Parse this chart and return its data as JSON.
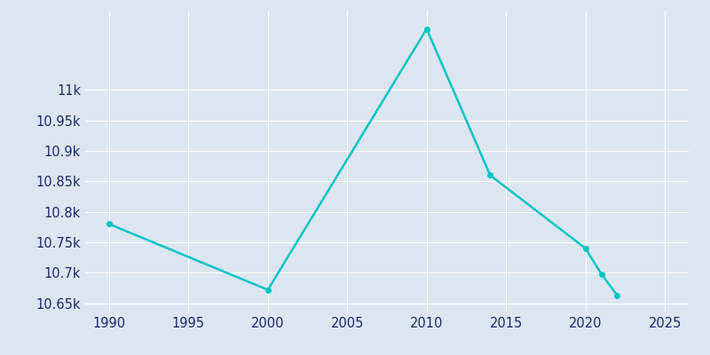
{
  "years": [
    1990,
    2000,
    2010,
    2014,
    2020,
    2021,
    2022
  ],
  "population": [
    10780,
    10672,
    11100,
    10860,
    10740,
    10698,
    10663
  ],
  "line_color": "#00C4C4",
  "marker_color": "#00C4C4",
  "background_color": "#dce6f0",
  "grid_color": "#ffffff",
  "text_color": "#1a2a6c",
  "ylim": [
    10635,
    11130
  ],
  "xlim": [
    1988.5,
    2026.5
  ],
  "ytick_positions": [
    10650,
    10700,
    10750,
    10800,
    10850,
    10900,
    10950,
    11000
  ],
  "ytick_labels": [
    "10.65k",
    "10.7k",
    "10.75k",
    "10.8k",
    "10.85k",
    "10.9k",
    "10.95k",
    "11k"
  ],
  "xticks": [
    1990,
    1995,
    2000,
    2005,
    2010,
    2015,
    2020,
    2025
  ],
  "figsize": [
    8.0,
    4.0
  ],
  "dpi": 100,
  "linewidth": 1.8,
  "markersize": 4
}
